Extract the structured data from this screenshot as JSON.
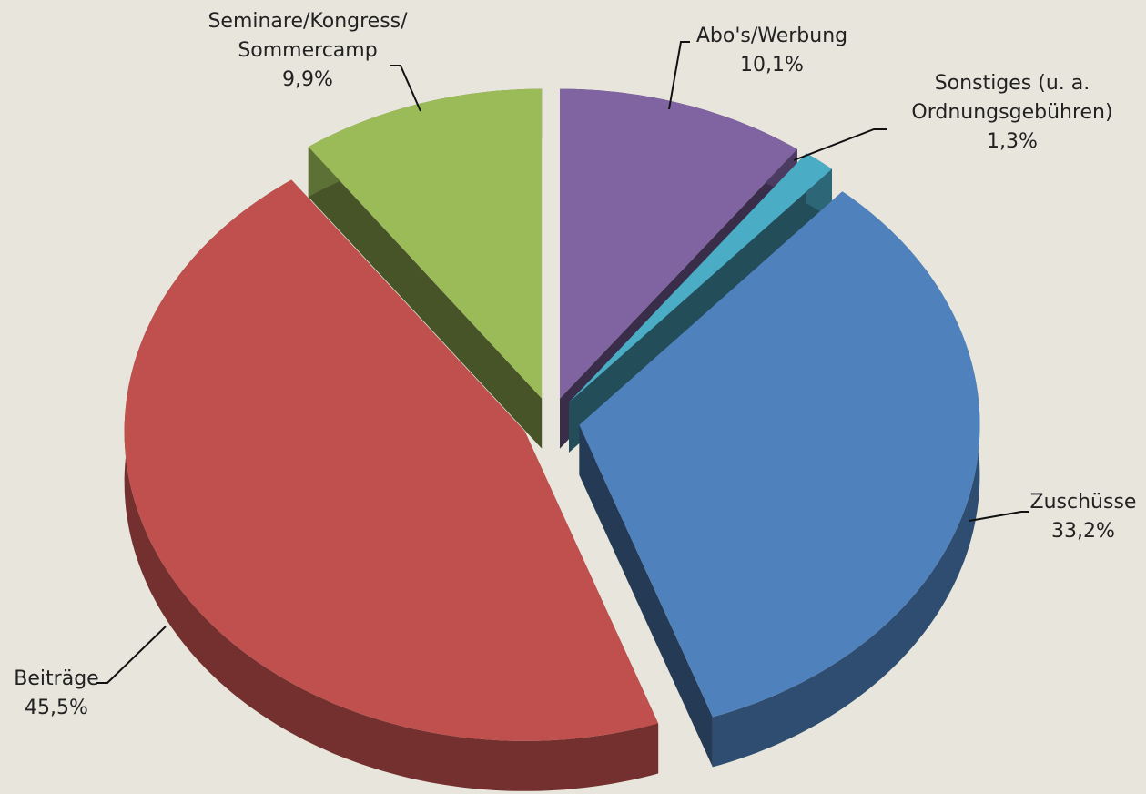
{
  "chart_data": {
    "type": "pie",
    "categories": [
      "Abo's/Werbung",
      "Sonstiges (u. a.\nOrdnungsgebühren)",
      "Zuschüsse",
      "Beiträge",
      "Seminare/Kongress/\nSommercamp"
    ],
    "values": [
      10.1,
      1.3,
      33.2,
      45.5,
      9.9
    ],
    "value_labels": [
      "10,1%",
      "1,3%",
      "33,2%",
      "45,5%",
      "9,9%"
    ],
    "colors": [
      "#8064a2",
      "#4bacc6",
      "#4f81bd",
      "#c0504d",
      "#9bbb59"
    ]
  }
}
